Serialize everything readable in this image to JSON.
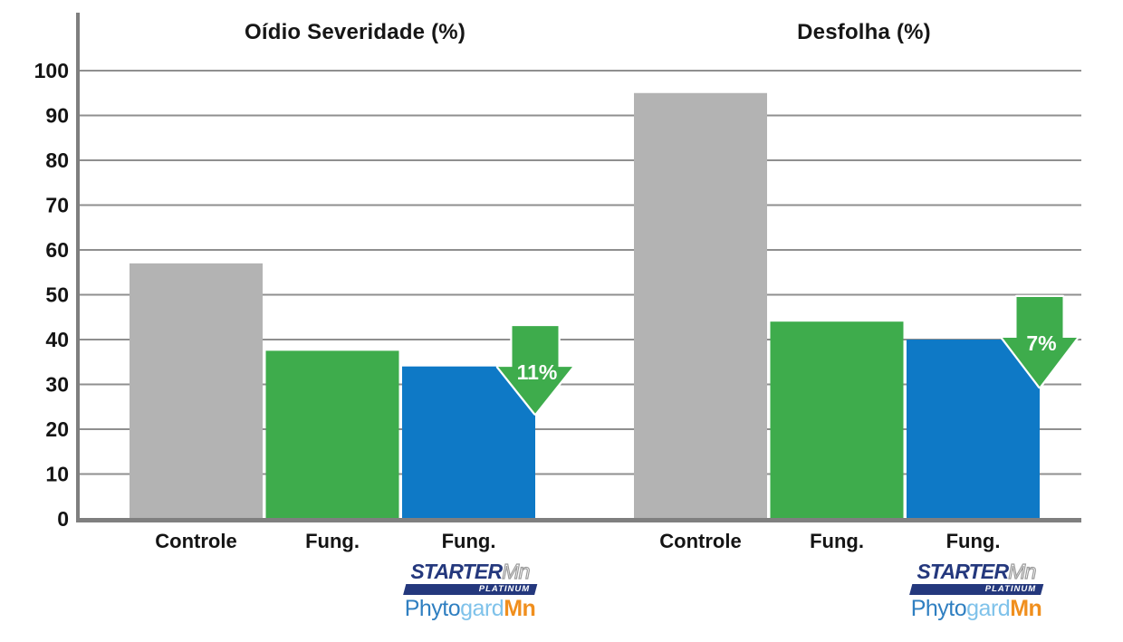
{
  "chart_data": {
    "type": "bar",
    "ylim": [
      0,
      100
    ],
    "ytick_step": 10,
    "grid": "horizontal",
    "groups": [
      {
        "title": "Oídio Severidade (%)",
        "categories": [
          "Controle",
          "Fung.",
          "Fung."
        ],
        "values": [
          57,
          37.5,
          34
        ],
        "reduction_arrow": {
          "label": "11%",
          "from_value": 43,
          "to_value": 23.5
        }
      },
      {
        "title": "Desfolha (%)",
        "categories": [
          "Controle",
          "Fung.",
          "Fung."
        ],
        "values": [
          95,
          44,
          40
        ],
        "reduction_arrow": {
          "label": "7%",
          "from_value": 49.5,
          "to_value": 29.5
        }
      }
    ],
    "bar_colors": [
      "#B3B3B3",
      "#3EAC4C",
      "#0E79C6"
    ],
    "arrow_color": "#3EAC4C",
    "arrow_label_color": "#FFFFFF",
    "grid_color": "#8F8F8F",
    "axis_color": "#7F7F7F",
    "text_color": "#141414"
  },
  "logo": {
    "starter": "STARTER",
    "starter_mn": "Mn",
    "platinum": "PLATINUM",
    "phyto": "Phyto",
    "gard": "gard",
    "mn": "Mn",
    "navy": "#24387D",
    "phyto_blue": "#2F7FC1",
    "gard_blue": "#7FC2EA",
    "mn_orange": "#F08F1E"
  }
}
